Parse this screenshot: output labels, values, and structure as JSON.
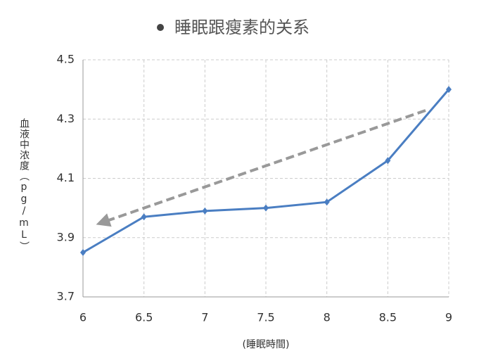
{
  "chart_data": {
    "type": "line",
    "title": "睡眠跟瘦素的关系",
    "x_label": "(睡眠時間)",
    "y_label": "血液中浓度（pg/mL）",
    "x": [
      6,
      6.5,
      7,
      7.5,
      8,
      8.5,
      9
    ],
    "series": [
      {
        "name": "睡眠跟瘦素的关系",
        "color": "#4a7ec2",
        "values": [
          3.85,
          3.97,
          3.99,
          4.0,
          4.02,
          4.16,
          4.4
        ]
      }
    ],
    "xlim": [
      6,
      9
    ],
    "xticks": [
      6,
      6.5,
      7,
      7.5,
      8,
      8.5,
      9
    ],
    "ylim": [
      3.7,
      4.5
    ],
    "yticks": [
      3.7,
      3.9,
      4.1,
      4.3,
      4.5
    ],
    "grid": true
  }
}
